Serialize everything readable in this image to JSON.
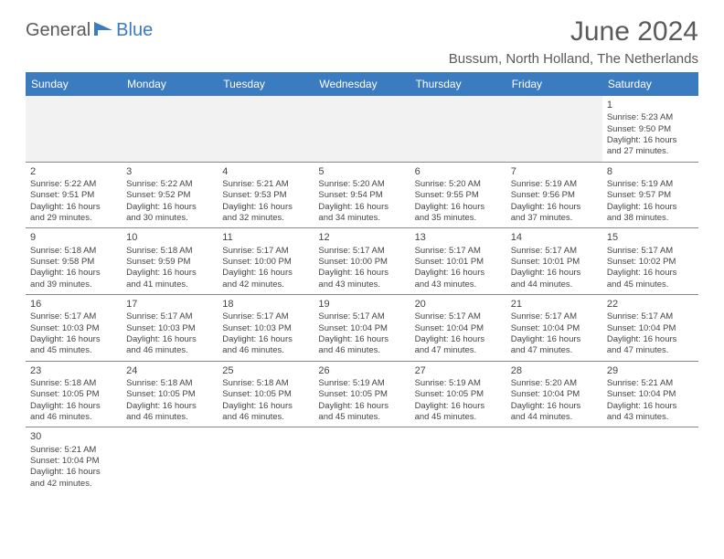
{
  "logo": {
    "dark": "General",
    "blue": "Blue"
  },
  "title": "June 2024",
  "location": "Bussum, North Holland, The Netherlands",
  "colors": {
    "header_bg": "#3b7bbf",
    "header_text": "#ffffff",
    "body_bg": "#ffffff",
    "empty_bg": "#f2f2f2",
    "border": "#888888",
    "text": "#444444",
    "title_text": "#5a5a5a"
  },
  "day_headers": [
    "Sunday",
    "Monday",
    "Tuesday",
    "Wednesday",
    "Thursday",
    "Friday",
    "Saturday"
  ],
  "weeks": [
    [
      null,
      null,
      null,
      null,
      null,
      null,
      {
        "n": "1",
        "sr": "5:23 AM",
        "ss": "9:50 PM",
        "dl1": "Daylight: 16 hours",
        "dl2": "and 27 minutes."
      }
    ],
    [
      {
        "n": "2",
        "sr": "5:22 AM",
        "ss": "9:51 PM",
        "dl1": "Daylight: 16 hours",
        "dl2": "and 29 minutes."
      },
      {
        "n": "3",
        "sr": "5:22 AM",
        "ss": "9:52 PM",
        "dl1": "Daylight: 16 hours",
        "dl2": "and 30 minutes."
      },
      {
        "n": "4",
        "sr": "5:21 AM",
        "ss": "9:53 PM",
        "dl1": "Daylight: 16 hours",
        "dl2": "and 32 minutes."
      },
      {
        "n": "5",
        "sr": "5:20 AM",
        "ss": "9:54 PM",
        "dl1": "Daylight: 16 hours",
        "dl2": "and 34 minutes."
      },
      {
        "n": "6",
        "sr": "5:20 AM",
        "ss": "9:55 PM",
        "dl1": "Daylight: 16 hours",
        "dl2": "and 35 minutes."
      },
      {
        "n": "7",
        "sr": "5:19 AM",
        "ss": "9:56 PM",
        "dl1": "Daylight: 16 hours",
        "dl2": "and 37 minutes."
      },
      {
        "n": "8",
        "sr": "5:19 AM",
        "ss": "9:57 PM",
        "dl1": "Daylight: 16 hours",
        "dl2": "and 38 minutes."
      }
    ],
    [
      {
        "n": "9",
        "sr": "5:18 AM",
        "ss": "9:58 PM",
        "dl1": "Daylight: 16 hours",
        "dl2": "and 39 minutes."
      },
      {
        "n": "10",
        "sr": "5:18 AM",
        "ss": "9:59 PM",
        "dl1": "Daylight: 16 hours",
        "dl2": "and 41 minutes."
      },
      {
        "n": "11",
        "sr": "5:17 AM",
        "ss": "10:00 PM",
        "dl1": "Daylight: 16 hours",
        "dl2": "and 42 minutes."
      },
      {
        "n": "12",
        "sr": "5:17 AM",
        "ss": "10:00 PM",
        "dl1": "Daylight: 16 hours",
        "dl2": "and 43 minutes."
      },
      {
        "n": "13",
        "sr": "5:17 AM",
        "ss": "10:01 PM",
        "dl1": "Daylight: 16 hours",
        "dl2": "and 43 minutes."
      },
      {
        "n": "14",
        "sr": "5:17 AM",
        "ss": "10:01 PM",
        "dl1": "Daylight: 16 hours",
        "dl2": "and 44 minutes."
      },
      {
        "n": "15",
        "sr": "5:17 AM",
        "ss": "10:02 PM",
        "dl1": "Daylight: 16 hours",
        "dl2": "and 45 minutes."
      }
    ],
    [
      {
        "n": "16",
        "sr": "5:17 AM",
        "ss": "10:03 PM",
        "dl1": "Daylight: 16 hours",
        "dl2": "and 45 minutes."
      },
      {
        "n": "17",
        "sr": "5:17 AM",
        "ss": "10:03 PM",
        "dl1": "Daylight: 16 hours",
        "dl2": "and 46 minutes."
      },
      {
        "n": "18",
        "sr": "5:17 AM",
        "ss": "10:03 PM",
        "dl1": "Daylight: 16 hours",
        "dl2": "and 46 minutes."
      },
      {
        "n": "19",
        "sr": "5:17 AM",
        "ss": "10:04 PM",
        "dl1": "Daylight: 16 hours",
        "dl2": "and 46 minutes."
      },
      {
        "n": "20",
        "sr": "5:17 AM",
        "ss": "10:04 PM",
        "dl1": "Daylight: 16 hours",
        "dl2": "and 47 minutes."
      },
      {
        "n": "21",
        "sr": "5:17 AM",
        "ss": "10:04 PM",
        "dl1": "Daylight: 16 hours",
        "dl2": "and 47 minutes."
      },
      {
        "n": "22",
        "sr": "5:17 AM",
        "ss": "10:04 PM",
        "dl1": "Daylight: 16 hours",
        "dl2": "and 47 minutes."
      }
    ],
    [
      {
        "n": "23",
        "sr": "5:18 AM",
        "ss": "10:05 PM",
        "dl1": "Daylight: 16 hours",
        "dl2": "and 46 minutes."
      },
      {
        "n": "24",
        "sr": "5:18 AM",
        "ss": "10:05 PM",
        "dl1": "Daylight: 16 hours",
        "dl2": "and 46 minutes."
      },
      {
        "n": "25",
        "sr": "5:18 AM",
        "ss": "10:05 PM",
        "dl1": "Daylight: 16 hours",
        "dl2": "and 46 minutes."
      },
      {
        "n": "26",
        "sr": "5:19 AM",
        "ss": "10:05 PM",
        "dl1": "Daylight: 16 hours",
        "dl2": "and 45 minutes."
      },
      {
        "n": "27",
        "sr": "5:19 AM",
        "ss": "10:05 PM",
        "dl1": "Daylight: 16 hours",
        "dl2": "and 45 minutes."
      },
      {
        "n": "28",
        "sr": "5:20 AM",
        "ss": "10:04 PM",
        "dl1": "Daylight: 16 hours",
        "dl2": "and 44 minutes."
      },
      {
        "n": "29",
        "sr": "5:21 AM",
        "ss": "10:04 PM",
        "dl1": "Daylight: 16 hours",
        "dl2": "and 43 minutes."
      }
    ],
    [
      {
        "n": "30",
        "sr": "5:21 AM",
        "ss": "10:04 PM",
        "dl1": "Daylight: 16 hours",
        "dl2": "and 42 minutes."
      },
      null,
      null,
      null,
      null,
      null,
      null
    ]
  ],
  "labels": {
    "sunrise_prefix": "Sunrise: ",
    "sunset_prefix": "Sunset: "
  }
}
